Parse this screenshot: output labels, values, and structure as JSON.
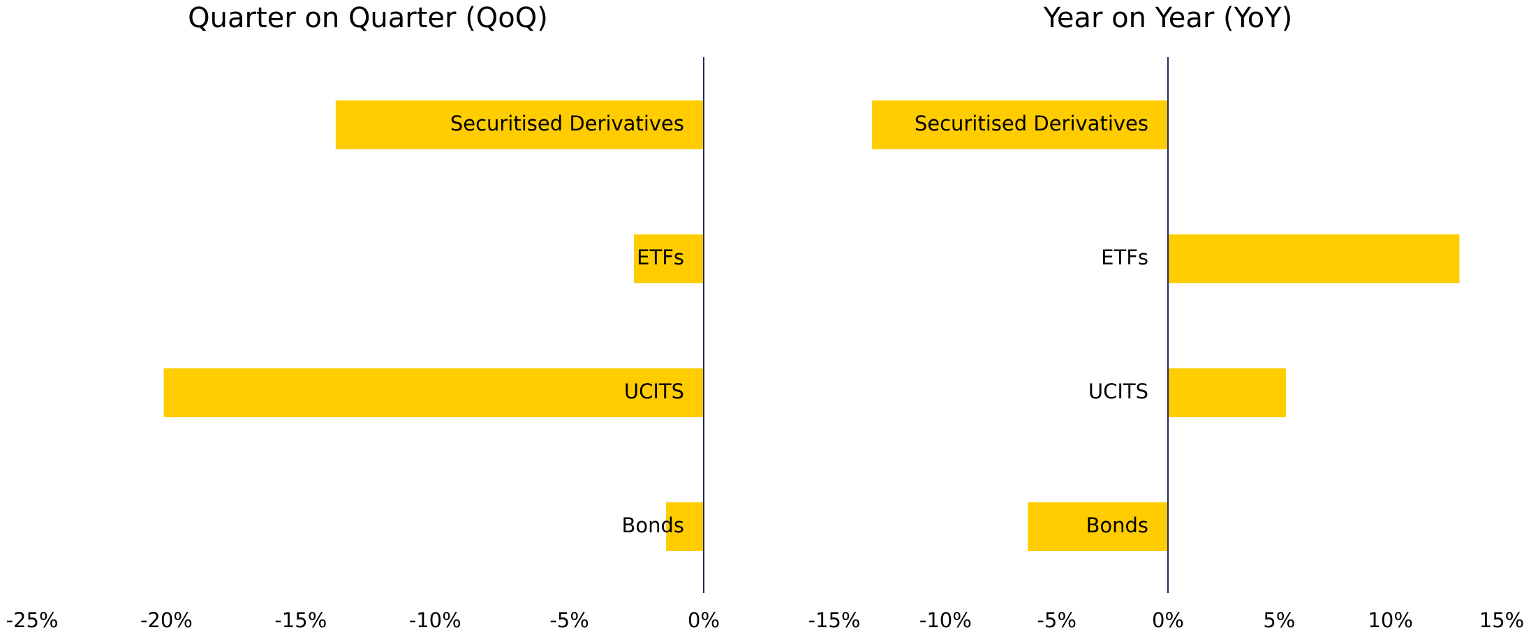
{
  "chart_data": [
    {
      "type": "bar",
      "orientation": "horizontal",
      "title": "Quarter on Quarter (QoQ)",
      "categories": [
        "Securitised Derivatives",
        "ETFs",
        "UCITS",
        "Bonds"
      ],
      "values": [
        -13.7,
        -2.6,
        -20.1,
        -1.4
      ],
      "color": "#ffcc00",
      "xlim": [
        -25,
        0
      ],
      "xticks": [
        {
          "value": -25,
          "label": "-25%"
        },
        {
          "value": -20,
          "label": "-20%"
        },
        {
          "value": -15,
          "label": "-15%"
        },
        {
          "value": -10,
          "label": "-10%"
        },
        {
          "value": -5,
          "label": "-5%"
        },
        {
          "value": 0,
          "label": "0%"
        }
      ],
      "grid": false
    },
    {
      "type": "bar",
      "orientation": "horizontal",
      "title": "Year on Year (YoY)",
      "categories": [
        "Securitised Derivatives",
        "ETFs",
        "UCITS",
        "Bonds"
      ],
      "values": [
        -13.3,
        13.1,
        5.3,
        -6.3
      ],
      "color": "#ffcc00",
      "xlim": [
        -15,
        15
      ],
      "xticks": [
        {
          "value": -15,
          "label": "-15%"
        },
        {
          "value": -10,
          "label": "-10%"
        },
        {
          "value": -5,
          "label": "-5%"
        },
        {
          "value": 0,
          "label": "0%"
        },
        {
          "value": 5,
          "label": "5%"
        },
        {
          "value": 10,
          "label": "10%"
        },
        {
          "value": 15,
          "label": "15%"
        }
      ],
      "grid": false
    }
  ]
}
